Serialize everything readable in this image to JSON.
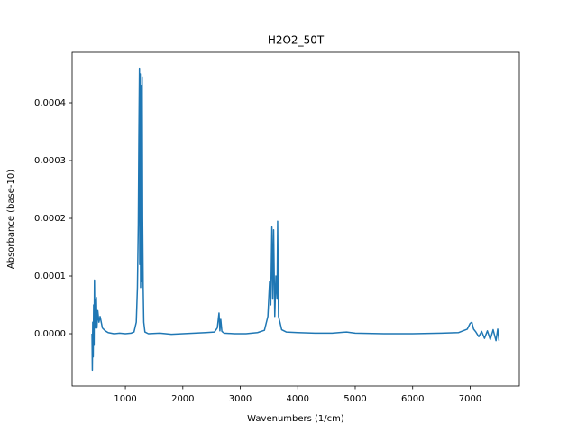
{
  "chart_data": {
    "type": "line",
    "title": "H2O2_50T",
    "x_label": "Wavenumbers (1/cm)",
    "y_label": "Absorbance (base-10)",
    "xlim": [
      73,
      7856
    ],
    "ylim": [
      -9.06e-05,
      0.0004875
    ],
    "xticks": [
      1000,
      2000,
      3000,
      4000,
      5000,
      6000,
      7000
    ],
    "yticks": [
      {
        "value": 0,
        "label": "0.0000"
      },
      {
        "value": 0.0001,
        "label": "0.0001"
      },
      {
        "value": 0.0002,
        "label": "0.0002"
      },
      {
        "value": 0.0003,
        "label": "0.0003"
      },
      {
        "value": 0.0004,
        "label": "0.0004"
      }
    ],
    "grid": false,
    "series": [
      {
        "color": "#1f77b4",
        "x": [
          419,
          425,
          432,
          440,
          448,
          455,
          462,
          470,
          478,
          486,
          495,
          505,
          520,
          540,
          560,
          600,
          650,
          700,
          800,
          900,
          1000,
          1100,
          1150,
          1190,
          1210,
          1225,
          1235,
          1245,
          1250,
          1258,
          1265,
          1275,
          1285,
          1292,
          1300,
          1310,
          1320,
          1340,
          1400,
          1600,
          1800,
          2000,
          2200,
          2400,
          2550,
          2600,
          2630,
          2645,
          2660,
          2680,
          2720,
          2900,
          3100,
          3300,
          3420,
          3480,
          3510,
          3530,
          3550,
          3565,
          3580,
          3600,
          3620,
          3640,
          3650,
          3665,
          3690,
          3720,
          3800,
          4000,
          4300,
          4600,
          4850,
          5000,
          5500,
          6000,
          6500,
          6800,
          6950,
          7000,
          7030,
          7060,
          7100,
          7150,
          7200,
          7250,
          7300,
          7350,
          7400,
          7450,
          7480,
          7502
        ],
        "values": [
          0,
          -6.3e-05,
          2e-05,
          -4e-05,
          5e-05,
          -2e-05,
          9.3e-05,
          1e-05,
          6e-05,
          2e-05,
          6.3e-05,
          1e-05,
          4e-05,
          2e-05,
          3e-05,
          1e-05,
          5e-06,
          2e-06,
          0,
          1e-06,
          0,
          1e-06,
          3e-06,
          2e-05,
          8e-05,
          0.00019,
          0.00034,
          0.00046,
          0.00012,
          0.00045,
          8e-05,
          0.00043,
          9e-05,
          0.000445,
          0.0002,
          8e-05,
          2e-05,
          3e-06,
          0,
          1e-06,
          -1e-06,
          0,
          1e-06,
          2e-06,
          3e-06,
          1e-05,
          3.6e-05,
          5e-06,
          2.5e-05,
          4e-06,
          1e-06,
          0,
          0,
          2e-06,
          6e-06,
          3e-05,
          9e-05,
          5e-05,
          0.000185,
          6e-05,
          0.00018,
          3e-05,
          0.0001,
          6e-05,
          0.000195,
          3e-05,
          2e-05,
          7e-06,
          3e-06,
          2e-06,
          1e-06,
          1e-06,
          3e-06,
          1e-06,
          0,
          0,
          1e-06,
          2e-06,
          8e-06,
          1.8e-05,
          2e-05,
          8e-06,
          3e-06,
          -5e-06,
          4e-06,
          -8e-06,
          5e-06,
          -1e-05,
          7e-06,
          -1.2e-05,
          8e-06,
          -1.2e-05
        ]
      }
    ]
  }
}
